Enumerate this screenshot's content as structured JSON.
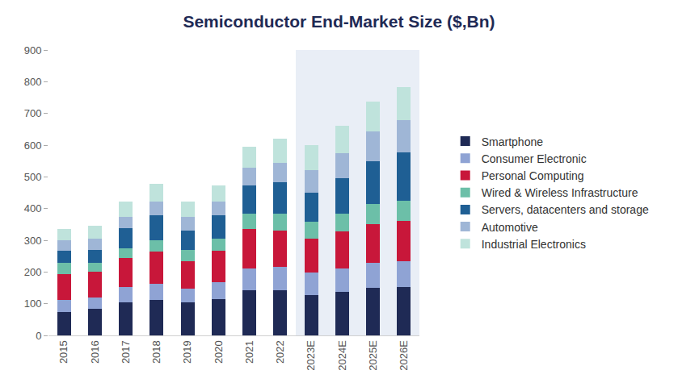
{
  "chart_data": {
    "type": "bar",
    "title": "Semiconductor End-Market Size ($,Bn)",
    "categories": [
      "2015",
      "2016",
      "2017",
      "2018",
      "2019",
      "2020",
      "2021",
      "2022",
      "2023E",
      "2024E",
      "2025E",
      "2026E"
    ],
    "series": [
      {
        "name": "Smartphone",
        "color": "#1f2a55",
        "values": [
          75,
          85,
          105,
          113,
          103,
          115,
          143,
          143,
          128,
          138,
          150,
          153
        ]
      },
      {
        "name": "Consumer Electronic",
        "color": "#8fa3d4",
        "values": [
          37,
          35,
          47,
          50,
          45,
          52,
          67,
          72,
          70,
          72,
          78,
          82
        ]
      },
      {
        "name": "Personal Computing",
        "color": "#c8173a",
        "values": [
          82,
          80,
          91,
          102,
          85,
          101,
          125,
          115,
          107,
          117,
          124,
          127
        ]
      },
      {
        "name": "Wired & Wireless Infrastructure",
        "color": "#6cbfa8",
        "values": [
          36,
          30,
          32,
          35,
          37,
          37,
          48,
          53,
          53,
          58,
          63,
          63
        ]
      },
      {
        "name": "Servers, datacenters and storage",
        "color": "#1f5f94",
        "values": [
          38,
          40,
          63,
          80,
          60,
          75,
          90,
          100,
          92,
          110,
          135,
          153
        ]
      },
      {
        "name": "Automotive",
        "color": "#9fb6d6",
        "values": [
          32,
          35,
          37,
          43,
          43,
          42,
          57,
          62,
          70,
          80,
          93,
          102
        ]
      },
      {
        "name": "Industrial Electronics",
        "color": "#bfe3dc",
        "values": [
          35,
          40,
          48,
          55,
          50,
          50,
          65,
          75,
          80,
          87,
          94,
          102
        ]
      }
    ],
    "ylim": [
      0,
      900
    ],
    "yticks": [
      0,
      100,
      200,
      300,
      400,
      500,
      600,
      700,
      800,
      900
    ],
    "grid": false,
    "stacked": true,
    "legend": "right"
  }
}
